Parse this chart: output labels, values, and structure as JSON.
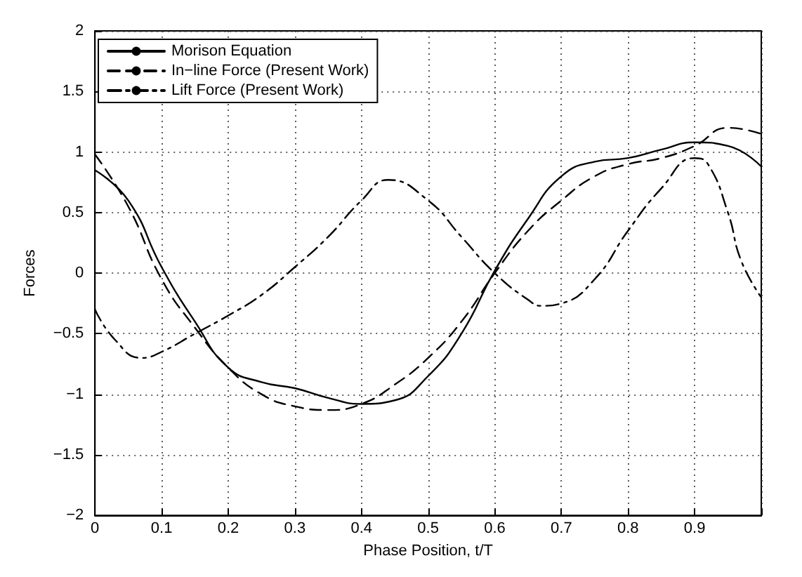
{
  "chart_data": {
    "type": "line",
    "xlabel": "Phase Position, t/T",
    "ylabel": "Forces",
    "xlim": [
      0,
      1
    ],
    "ylim": [
      -2,
      2
    ],
    "xticks": [
      0,
      0.1,
      0.2,
      0.3,
      0.4,
      0.5,
      0.6,
      0.7,
      0.8,
      0.9,
      {
        "value": 1,
        "label": null
      }
    ],
    "yticks": [
      -2,
      -1.5,
      -1,
      -0.5,
      0,
      0.5,
      1,
      1.5,
      2
    ],
    "grid": true,
    "legend": "top left",
    "marker": "none",
    "series": [
      {
        "name": "Morison Equation",
        "color": "#000000",
        "line_style": "solid",
        "x": [
          0,
          0.05,
          0.1,
          0.15,
          0.2,
          0.25,
          0.3,
          0.35,
          0.4,
          0.45,
          0.5,
          0.55,
          0.6,
          0.65,
          0.7,
          0.75,
          0.8,
          0.85,
          0.9,
          0.95,
          1
        ],
        "values": [
          0.85,
          0.6,
          0.05,
          -0.4,
          -0.78,
          -0.9,
          -0.95,
          -1.03,
          -1.08,
          -1.05,
          -0.85,
          -0.5,
          0.02,
          0.45,
          0.8,
          0.92,
          0.95,
          1.02,
          1.08,
          1.05,
          0.88
        ]
      },
      {
        "name": "In−line Force (Present Work)",
        "color": "#000000",
        "line_style": "dashed",
        "x": [
          0,
          0.05,
          0.1,
          0.15,
          0.2,
          0.25,
          0.3,
          0.35,
          0.4,
          0.45,
          0.5,
          0.55,
          0.6,
          0.65,
          0.7,
          0.75,
          0.8,
          0.85,
          0.9,
          0.95,
          1
        ],
        "values": [
          0.98,
          0.55,
          -0.05,
          -0.45,
          -0.78,
          -1.0,
          -1.1,
          -1.13,
          -1.08,
          -0.92,
          -0.7,
          -0.4,
          0.0,
          0.35,
          0.6,
          0.8,
          0.9,
          0.95,
          1.05,
          1.2,
          1.15
        ]
      },
      {
        "name": "Lift Force (Present Work)",
        "color": "#000000",
        "line_style": "dashdot",
        "x": [
          0,
          0.03,
          0.07,
          0.1,
          0.15,
          0.2,
          0.25,
          0.3,
          0.35,
          0.4,
          0.44,
          0.5,
          0.55,
          0.6,
          0.65,
          0.67,
          0.7,
          0.75,
          0.8,
          0.85,
          0.9,
          0.92,
          0.95,
          0.97,
          1
        ],
        "values": [
          -0.3,
          -0.55,
          -0.7,
          -0.65,
          -0.5,
          -0.35,
          -0.18,
          0.05,
          0.3,
          0.6,
          0.77,
          0.6,
          0.3,
          0.0,
          -0.22,
          -0.27,
          -0.25,
          -0.05,
          0.35,
          0.7,
          0.95,
          0.9,
          0.5,
          0.1,
          -0.2
        ]
      }
    ]
  }
}
